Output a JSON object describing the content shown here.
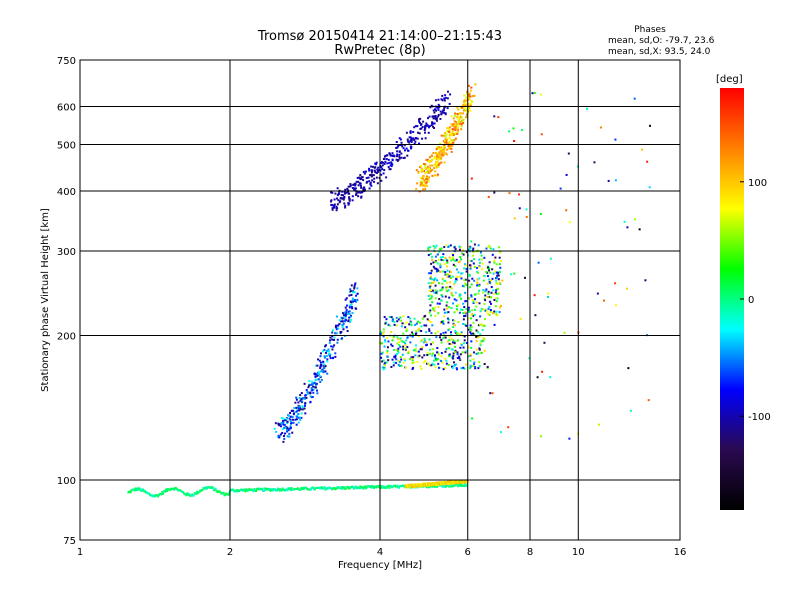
{
  "chart_data": {
    "type": "scatter",
    "title": "Tromsø 20150414 21:14:00–21:15:43",
    "subtitle": "RwPretec (8p)",
    "xlabel": "Frequency [MHz]",
    "ylabel": "Stationary phase Virtual Height [km]",
    "x_scale": "log",
    "y_scale": "log",
    "xlim": [
      1,
      16
    ],
    "ylim": [
      75,
      750
    ],
    "x_ticks": [
      1,
      2,
      4,
      6,
      8,
      10,
      16
    ],
    "y_ticks": [
      75,
      100,
      200,
      300,
      400,
      500,
      600,
      750
    ],
    "grid": true,
    "phases_box": {
      "title": "Phases",
      "line1": "mean, sd,O: -79.7, 23.6",
      "line2": "mean, sd,X:  93.5, 24.0"
    },
    "colorbar": {
      "label": "[deg]",
      "range": [
        -180,
        180
      ],
      "ticks": [
        100,
        0,
        -100
      ],
      "colors": [
        "#ff0000",
        "#ff8000",
        "#ffff00",
        "#00ff00",
        "#00ffff",
        "#0000ff",
        "#2a0a50",
        "#000000"
      ]
    },
    "clusters": [
      {
        "name": "E trace",
        "x": [
          1.25,
          6.0
        ],
        "y": [
          94,
          100
        ],
        "phase": [
          -20,
          20
        ],
        "kind": "line"
      },
      {
        "name": "E trace upper",
        "x": [
          4.5,
          6.0
        ],
        "y": [
          97,
          101
        ],
        "phase": [
          60,
          120
        ],
        "kind": "line"
      },
      {
        "name": "F1 O rise",
        "x": [
          2.5,
          3.6
        ],
        "y": [
          125,
          250
        ],
        "phase": [
          -120,
          -20
        ],
        "kind": "curve"
      },
      {
        "name": "F1 cusp",
        "x": [
          4.0,
          6.5
        ],
        "y": [
          170,
          220
        ],
        "phase": [
          -140,
          100
        ],
        "kind": "cloud"
      },
      {
        "name": "F1 upper",
        "x": [
          5.0,
          7.0
        ],
        "y": [
          220,
          310
        ],
        "phase": [
          -130,
          110
        ],
        "kind": "cloud"
      },
      {
        "name": "F2 O",
        "x": [
          3.2,
          5.5
        ],
        "y": [
          380,
          620
        ],
        "phase": [
          -120,
          -80
        ],
        "kind": "curve"
      },
      {
        "name": "F2 X",
        "x": [
          4.8,
          6.1
        ],
        "y": [
          420,
          640
        ],
        "phase": [
          60,
          150
        ],
        "kind": "curve"
      },
      {
        "name": "sparse high",
        "x": [
          6.0,
          14.0
        ],
        "y": [
          120,
          650
        ],
        "phase": [
          -180,
          180
        ],
        "kind": "sparse"
      }
    ]
  }
}
